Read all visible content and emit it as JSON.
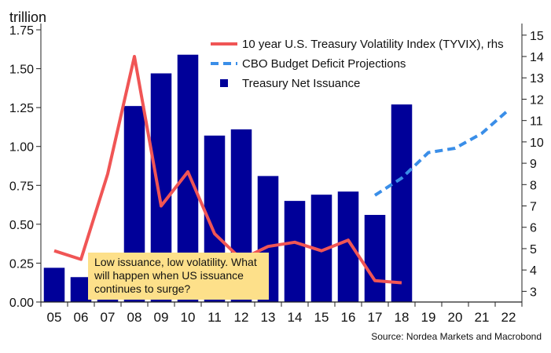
{
  "chart_data": {
    "type": "bar",
    "ylabel_left": "trillion",
    "categories": [
      "05",
      "06",
      "07",
      "08",
      "09",
      "10",
      "11",
      "12",
      "13",
      "14",
      "15",
      "16",
      "17",
      "18",
      "19",
      "20",
      "21",
      "22"
    ],
    "ylim_left": [
      0,
      1.75
    ],
    "ylim_right": [
      2.5,
      15.25
    ],
    "left_ticks": [
      "0.00",
      "0.25",
      "0.50",
      "0.75",
      "1.00",
      "1.25",
      "1.50",
      "1.75"
    ],
    "right_ticks": [
      "3",
      "4",
      "5",
      "6",
      "7",
      "8",
      "9",
      "10",
      "11",
      "12",
      "13",
      "14",
      "15"
    ],
    "series": [
      {
        "name": "Treasury Net Issuance",
        "type": "bar",
        "axis": "left",
        "color": "#000099",
        "values": [
          0.22,
          0.16,
          0.17,
          1.26,
          1.47,
          1.59,
          1.07,
          1.11,
          0.81,
          0.65,
          0.69,
          0.71,
          0.56,
          1.27,
          null,
          null,
          null,
          null
        ]
      },
      {
        "name": "10 year U.S. Treasury Volatility Index (TYVIX), rhs",
        "type": "line",
        "axis": "right",
        "color": "#f05555",
        "points": [
          [
            0,
            4.9
          ],
          [
            1,
            4.5
          ],
          [
            2,
            8.5
          ],
          [
            3,
            14.0
          ],
          [
            4,
            7.0
          ],
          [
            5,
            8.6
          ],
          [
            6,
            5.7
          ],
          [
            7,
            4.5
          ],
          [
            8,
            5.1
          ],
          [
            9,
            5.3
          ],
          [
            10,
            4.9
          ],
          [
            11,
            5.4
          ],
          [
            12,
            3.5
          ],
          [
            13,
            3.4
          ]
        ]
      },
      {
        "name": "CBO Budget Deficit Projections",
        "type": "line",
        "axis": "right",
        "dashed": true,
        "color": "#3a8ee8",
        "points": [
          [
            12,
            7.5
          ],
          [
            13,
            8.3
          ],
          [
            14,
            9.5
          ],
          [
            15,
            9.7
          ],
          [
            16,
            10.4
          ],
          [
            17,
            11.5
          ]
        ]
      }
    ],
    "legend_position": "top-right",
    "annotation": "Low issuance, low volatility. What will happen when US issuance continues to surge?",
    "source": "Source: Nordea Markets and Macrobond"
  }
}
